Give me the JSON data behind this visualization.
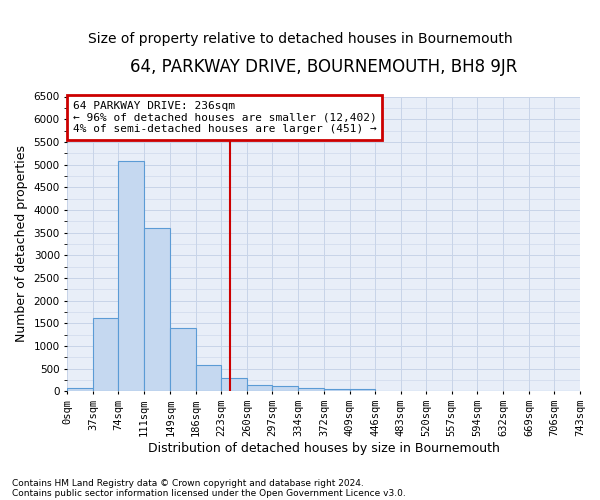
{
  "title": "64, PARKWAY DRIVE, BOURNEMOUTH, BH8 9JR",
  "subtitle": "Size of property relative to detached houses in Bournemouth",
  "xlabel": "Distribution of detached houses by size in Bournemouth",
  "ylabel": "Number of detached properties",
  "footnote1": "Contains HM Land Registry data © Crown copyright and database right 2024.",
  "footnote2": "Contains public sector information licensed under the Open Government Licence v3.0.",
  "bin_edges": [
    0,
    37,
    74,
    111,
    149,
    186,
    223,
    260,
    297,
    334,
    372,
    409,
    446,
    483,
    520,
    557,
    594,
    632,
    669,
    706,
    743
  ],
  "bar_heights": [
    75,
    1625,
    5075,
    3600,
    1400,
    590,
    290,
    140,
    110,
    70,
    55,
    50,
    0,
    0,
    0,
    0,
    0,
    0,
    0,
    0
  ],
  "bar_color": "#c5d8f0",
  "bar_edge_color": "#5b9bd5",
  "grid_color": "#c8d4e8",
  "background_color": "#e8eef8",
  "vline_x": 236,
  "vline_color": "#cc0000",
  "ylim": [
    0,
    6500
  ],
  "yticks": [
    0,
    500,
    1000,
    1500,
    2000,
    2500,
    3000,
    3500,
    4000,
    4500,
    5000,
    5500,
    6000,
    6500
  ],
  "annotation_line1": "64 PARKWAY DRIVE: 236sqm",
  "annotation_line2": "← 96% of detached houses are smaller (12,402)",
  "annotation_line3": "4% of semi-detached houses are larger (451) →",
  "annotation_box_color": "#cc0000",
  "title_fontsize": 12,
  "subtitle_fontsize": 10,
  "tick_fontsize": 7.5,
  "axis_label_fontsize": 9,
  "annot_fontsize": 8
}
